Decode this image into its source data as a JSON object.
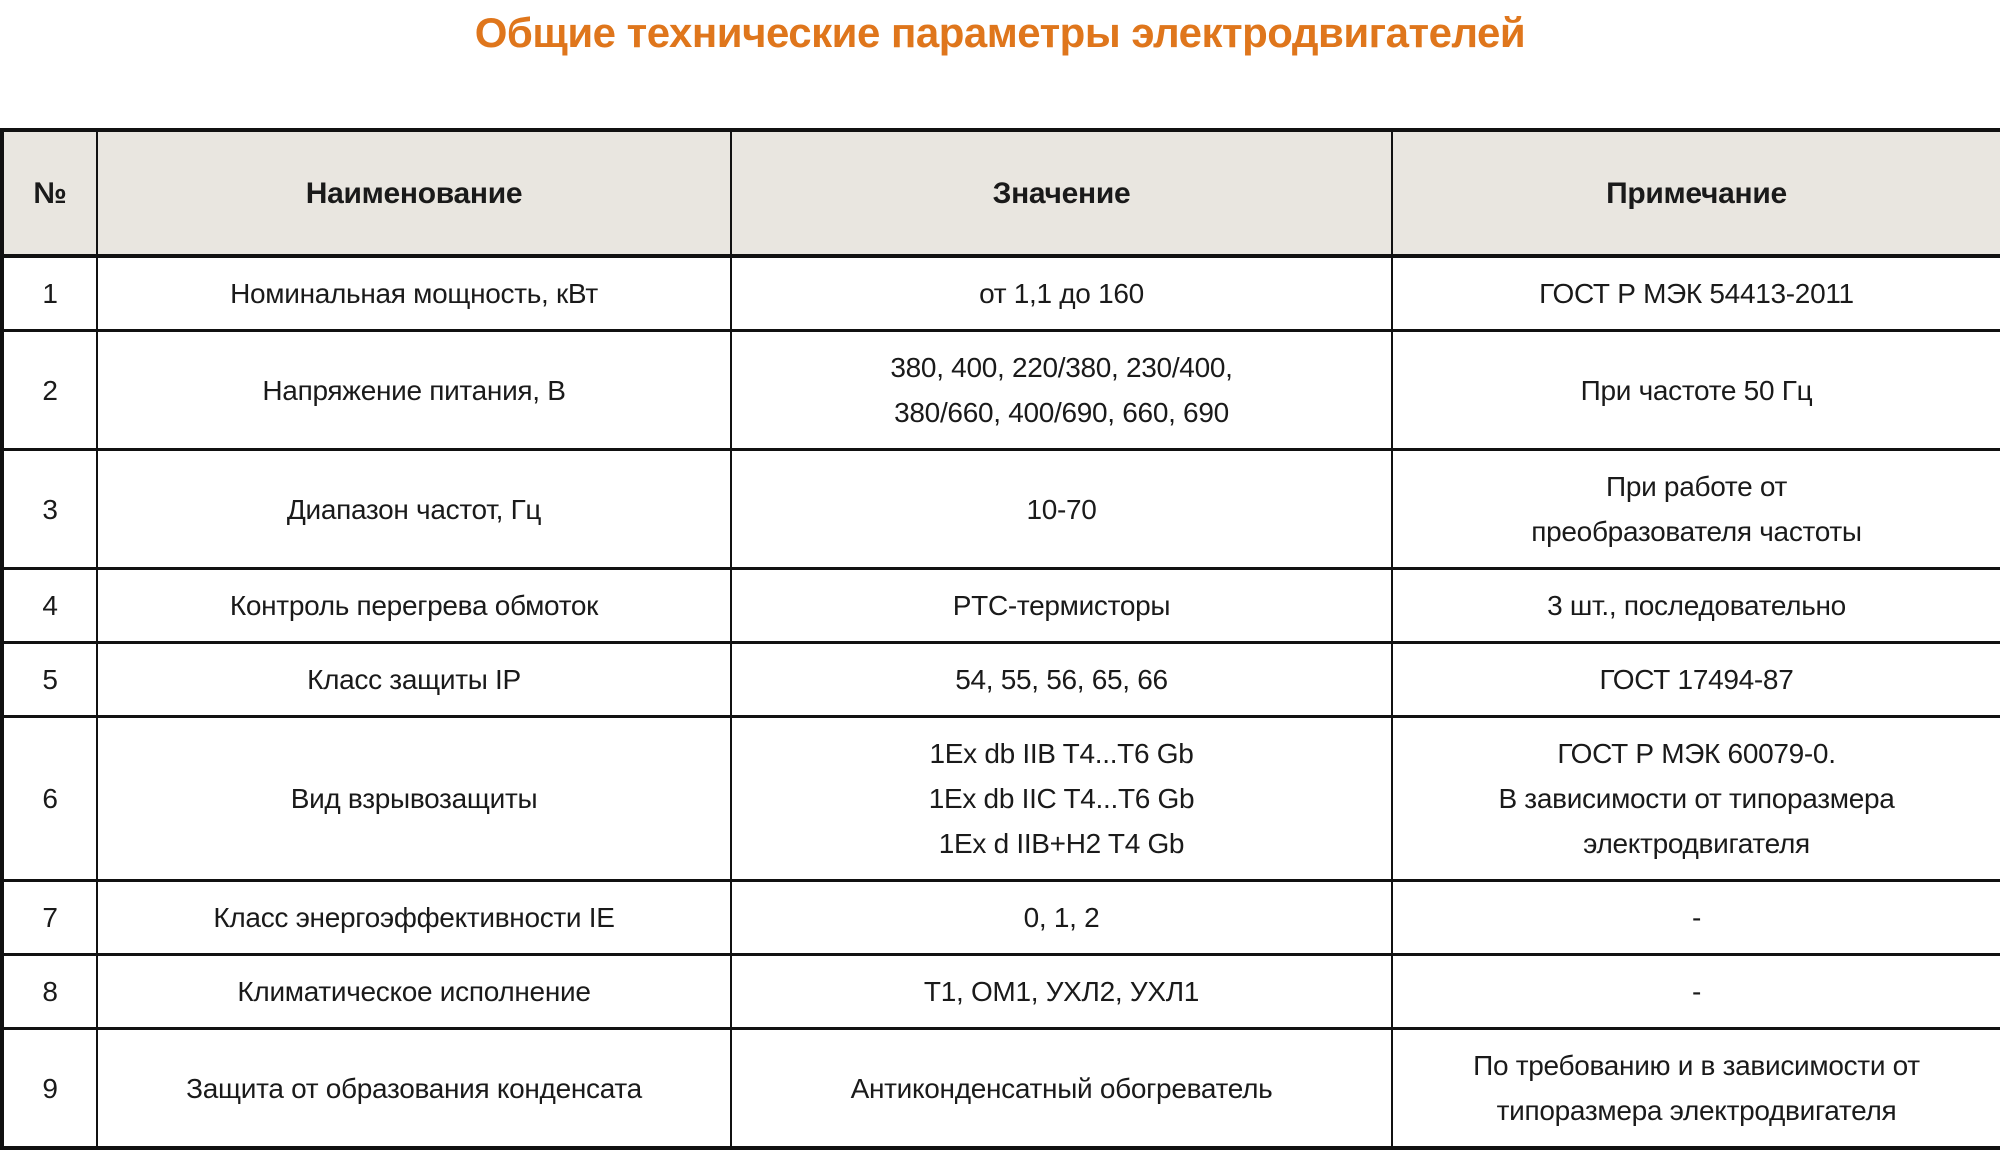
{
  "title": "Общие технические параметры электродвигателей",
  "colors": {
    "title_accent": "#DF761C",
    "header_background": "#E9E6E0",
    "border": "#111111",
    "text": "#1A1A1A"
  },
  "table": {
    "headers": [
      "№",
      "Наименование",
      "Значение",
      "Примечание"
    ],
    "rows": [
      {
        "num": "1",
        "name": "Номинальная мощность, кВт",
        "value": "от 1,1 до 160",
        "note": "ГОСТ Р МЭК 54413-2011"
      },
      {
        "num": "2",
        "name": "Напряжение питания, В",
        "value": "380, 400, 220/380, 230/400,\n380/660, 400/690, 660, 690",
        "note": "При частоте 50 Гц"
      },
      {
        "num": "3",
        "name": "Диапазон частот, Гц",
        "value": "10-70",
        "note": "При работе от\nпреобразователя частоты"
      },
      {
        "num": "4",
        "name": "Контроль перегрева обмоток",
        "value": "PTC-термисторы",
        "note": "3 шт., последовательно"
      },
      {
        "num": "5",
        "name": "Класс защиты IP",
        "value": "54, 55, 56, 65, 66",
        "note": "ГОСТ 17494-87"
      },
      {
        "num": "6",
        "name": "Вид взрывозащиты",
        "value": "1Ex db IIB T4...T6 Gb\n1Ex db IIC T4...T6 Gb\n1Ex d IIB+H2 T4 Gb",
        "note": "ГОСТ Р МЭК 60079-0.\nВ зависимости от типоразмера\nэлектродвигателя"
      },
      {
        "num": "7",
        "name": "Класс энергоэффективности IE",
        "value": "0, 1, 2",
        "note": "-"
      },
      {
        "num": "8",
        "name": "Климатическое исполнение",
        "value": "Т1, ОМ1, УХЛ2, УХЛ1",
        "note": "-"
      },
      {
        "num": "9",
        "name": "Защита от образования конденсата",
        "value": "Антиконденсатный обогреватель",
        "note": "По требованию и в зависимости от\nтипоразмера электродвигателя"
      }
    ]
  }
}
